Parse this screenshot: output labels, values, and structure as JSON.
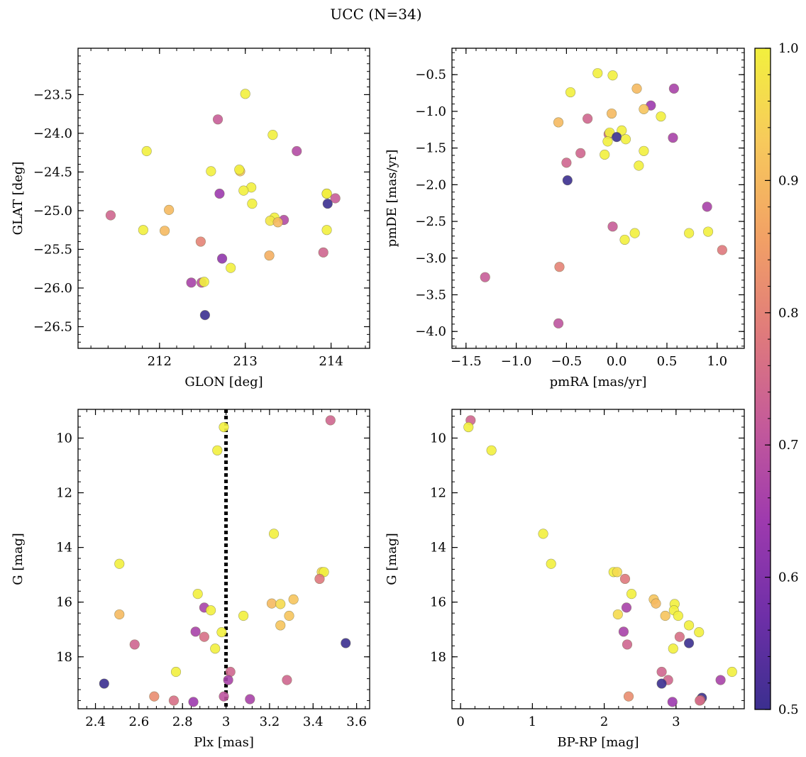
{
  "title": "UCC (N=34)",
  "colorbar": {
    "range": [
      0.5,
      1.0
    ],
    "ticks": [
      "0.5",
      "0.6",
      "0.7",
      "0.8",
      "0.9",
      "1.0"
    ],
    "colormap": "plasma",
    "stops": [
      "#3b2f8f",
      "#6f2fa8",
      "#9e3aae",
      "#c45a9a",
      "#e07b7b",
      "#f2a165",
      "#f7c95c",
      "#f2f03e"
    ]
  },
  "chart_data": [
    {
      "type": "scatter",
      "xlabel": "GLON [deg]",
      "ylabel": "GLAT [deg]",
      "xlim": [
        211.05,
        214.45
      ],
      "ylim": [
        -26.78,
        -22.9
      ],
      "y_inverted": false,
      "xticks": [
        212,
        213,
        214
      ],
      "yticks": [
        -23.5,
        -24.0,
        -24.5,
        -25.0,
        -25.5,
        -26.0,
        -26.5
      ],
      "ytick_labels": [
        "−23.5",
        "−24.0",
        "−24.5",
        "−25.0",
        "−25.5",
        "−26.0",
        "−26.5"
      ],
      "points": [
        {
          "x": 213.0,
          "y": -23.49,
          "c": 1.0
        },
        {
          "x": 212.68,
          "y": -23.82,
          "c": 0.72
        },
        {
          "x": 213.32,
          "y": -24.02,
          "c": 1.0
        },
        {
          "x": 211.85,
          "y": -24.23,
          "c": 1.0
        },
        {
          "x": 213.6,
          "y": -24.23,
          "c": 0.68
        },
        {
          "x": 212.6,
          "y": -24.49,
          "c": 1.0
        },
        {
          "x": 212.94,
          "y": -24.49,
          "c": 0.92
        },
        {
          "x": 212.93,
          "y": -24.47,
          "c": 1.0
        },
        {
          "x": 213.07,
          "y": -24.7,
          "c": 1.0
        },
        {
          "x": 212.98,
          "y": -24.74,
          "c": 1.0
        },
        {
          "x": 212.7,
          "y": -24.78,
          "c": 0.64
        },
        {
          "x": 213.95,
          "y": -24.78,
          "c": 0.96
        },
        {
          "x": 213.95,
          "y": -24.78,
          "c": 1.0
        },
        {
          "x": 214.05,
          "y": -24.84,
          "c": 0.72
        },
        {
          "x": 213.08,
          "y": -24.91,
          "c": 1.0
        },
        {
          "x": 213.96,
          "y": -24.91,
          "c": 0.5
        },
        {
          "x": 212.11,
          "y": -24.99,
          "c": 0.9
        },
        {
          "x": 211.43,
          "y": -25.06,
          "c": 0.74
        },
        {
          "x": 213.34,
          "y": -25.09,
          "c": 1.0
        },
        {
          "x": 213.45,
          "y": -25.12,
          "c": 0.68
        },
        {
          "x": 213.29,
          "y": -25.13,
          "c": 0.98
        },
        {
          "x": 213.38,
          "y": -25.15,
          "c": 0.9
        },
        {
          "x": 211.81,
          "y": -25.25,
          "c": 1.0
        },
        {
          "x": 212.06,
          "y": -25.26,
          "c": 0.9
        },
        {
          "x": 213.95,
          "y": -25.25,
          "c": 1.0
        },
        {
          "x": 212.48,
          "y": -25.4,
          "c": 0.8
        },
        {
          "x": 213.91,
          "y": -25.54,
          "c": 0.74
        },
        {
          "x": 213.28,
          "y": -25.58,
          "c": 0.88
        },
        {
          "x": 212.73,
          "y": -25.62,
          "c": 0.62
        },
        {
          "x": 212.83,
          "y": -25.74,
          "c": 1.0
        },
        {
          "x": 212.37,
          "y": -25.93,
          "c": 0.66
        },
        {
          "x": 212.49,
          "y": -25.93,
          "c": 0.7
        },
        {
          "x": 212.52,
          "y": -25.92,
          "c": 1.0
        },
        {
          "x": 212.53,
          "y": -26.35,
          "c": 0.5
        }
      ]
    },
    {
      "type": "scatter",
      "xlabel": "pmRA [mas/yr]",
      "ylabel": "pmDE [mas/yr]",
      "xlim": [
        -1.64,
        1.27
      ],
      "ylim": [
        -4.23,
        -0.14
      ],
      "y_inverted": false,
      "xticks": [
        -1.5,
        -1.0,
        -0.5,
        0.0,
        0.5,
        1.0
      ],
      "xtick_labels": [
        "−1.5",
        "−1.0",
        "−0.5",
        "0.0",
        "0.5",
        "1.0"
      ],
      "yticks": [
        -0.5,
        -1.0,
        -1.5,
        -2.0,
        -2.5,
        -3.0,
        -3.5,
        -4.0
      ],
      "ytick_labels": [
        "−0.5",
        "−1.0",
        "−1.5",
        "−2.0",
        "−2.5",
        "−3.0",
        "−3.5",
        "−4.0"
      ],
      "points": [
        {
          "x": -0.19,
          "y": -0.48,
          "c": 1.0
        },
        {
          "x": -0.04,
          "y": -0.51,
          "c": 1.0
        },
        {
          "x": 0.2,
          "y": -0.69,
          "c": 0.9
        },
        {
          "x": 0.57,
          "y": -0.69,
          "c": 0.66
        },
        {
          "x": -0.46,
          "y": -0.74,
          "c": 1.0
        },
        {
          "x": 0.34,
          "y": -0.92,
          "c": 0.64
        },
        {
          "x": 0.27,
          "y": -0.97,
          "c": 0.92
        },
        {
          "x": -0.05,
          "y": -1.03,
          "c": 0.9
        },
        {
          "x": 0.44,
          "y": -1.07,
          "c": 1.0
        },
        {
          "x": -0.29,
          "y": -1.1,
          "c": 0.74
        },
        {
          "x": -0.58,
          "y": -1.15,
          "c": 0.9
        },
        {
          "x": 0.05,
          "y": -1.26,
          "c": 1.0
        },
        {
          "x": -0.08,
          "y": -1.31,
          "c": 0.74
        },
        {
          "x": -0.07,
          "y": -1.29,
          "c": 1.0
        },
        {
          "x": 0.0,
          "y": -1.35,
          "c": 0.5
        },
        {
          "x": 0.09,
          "y": -1.38,
          "c": 1.0
        },
        {
          "x": 0.56,
          "y": -1.36,
          "c": 0.66
        },
        {
          "x": -0.09,
          "y": -1.41,
          "c": 1.0
        },
        {
          "x": 0.27,
          "y": -1.54,
          "c": 1.0
        },
        {
          "x": -0.36,
          "y": -1.57,
          "c": 0.74
        },
        {
          "x": -0.12,
          "y": -1.59,
          "c": 1.0
        },
        {
          "x": -0.5,
          "y": -1.7,
          "c": 0.74
        },
        {
          "x": 0.22,
          "y": -1.74,
          "c": 1.0
        },
        {
          "x": -0.49,
          "y": -1.94,
          "c": 0.5
        },
        {
          "x": 0.9,
          "y": -2.3,
          "c": 0.66
        },
        {
          "x": -0.04,
          "y": -2.57,
          "c": 0.72
        },
        {
          "x": 0.18,
          "y": -2.66,
          "c": 1.0
        },
        {
          "x": 0.72,
          "y": -2.66,
          "c": 1.0
        },
        {
          "x": 0.91,
          "y": -2.64,
          "c": 1.0
        },
        {
          "x": 1.05,
          "y": -2.89,
          "c": 0.78
        },
        {
          "x": 0.08,
          "y": -2.75,
          "c": 1.0
        },
        {
          "x": -0.57,
          "y": -3.12,
          "c": 0.8
        },
        {
          "x": -1.31,
          "y": -3.26,
          "c": 0.72
        },
        {
          "x": -0.58,
          "y": -3.89,
          "c": 0.7
        }
      ]
    },
    {
      "type": "scatter",
      "xlabel": "Plx [mas]",
      "ylabel": "G [mag]",
      "xlim": [
        2.32,
        3.66
      ],
      "ylim": [
        19.9,
        8.95
      ],
      "y_inverted": true,
      "xticks": [
        2.4,
        2.6,
        2.8,
        3.0,
        3.2,
        3.4,
        3.6
      ],
      "yticks": [
        10,
        12,
        14,
        16,
        18
      ],
      "reference_line": {
        "x": 3.0,
        "style": "dotted"
      },
      "points": [
        {
          "x": 2.99,
          "y": 9.6,
          "c": 1.0
        },
        {
          "x": 3.48,
          "y": 9.35,
          "c": 0.74
        },
        {
          "x": 2.96,
          "y": 10.45,
          "c": 1.0
        },
        {
          "x": 3.22,
          "y": 13.5,
          "c": 1.0
        },
        {
          "x": 2.51,
          "y": 14.6,
          "c": 1.0
        },
        {
          "x": 3.44,
          "y": 14.9,
          "c": 0.96
        },
        {
          "x": 3.45,
          "y": 14.9,
          "c": 1.0
        },
        {
          "x": 3.43,
          "y": 15.15,
          "c": 0.78
        },
        {
          "x": 2.87,
          "y": 15.7,
          "c": 1.0
        },
        {
          "x": 3.31,
          "y": 15.9,
          "c": 0.92
        },
        {
          "x": 3.21,
          "y": 16.05,
          "c": 0.9
        },
        {
          "x": 3.25,
          "y": 16.07,
          "c": 0.96
        },
        {
          "x": 2.9,
          "y": 16.2,
          "c": 0.66
        },
        {
          "x": 2.93,
          "y": 16.3,
          "c": 1.0
        },
        {
          "x": 2.51,
          "y": 16.45,
          "c": 0.9
        },
        {
          "x": 3.08,
          "y": 16.5,
          "c": 1.0
        },
        {
          "x": 3.29,
          "y": 16.5,
          "c": 0.92
        },
        {
          "x": 3.25,
          "y": 16.85,
          "c": 0.92
        },
        {
          "x": 2.86,
          "y": 17.08,
          "c": 0.66
        },
        {
          "x": 2.98,
          "y": 17.1,
          "c": 1.0
        },
        {
          "x": 2.9,
          "y": 17.27,
          "c": 0.76
        },
        {
          "x": 2.58,
          "y": 17.55,
          "c": 0.74
        },
        {
          "x": 3.55,
          "y": 17.5,
          "c": 0.5
        },
        {
          "x": 2.95,
          "y": 17.7,
          "c": 1.0
        },
        {
          "x": 2.77,
          "y": 18.55,
          "c": 1.0
        },
        {
          "x": 3.02,
          "y": 18.55,
          "c": 0.74
        },
        {
          "x": 3.28,
          "y": 18.85,
          "c": 0.74
        },
        {
          "x": 3.01,
          "y": 18.85,
          "c": 0.66
        },
        {
          "x": 2.44,
          "y": 18.98,
          "c": 0.5
        },
        {
          "x": 2.67,
          "y": 19.45,
          "c": 0.82
        },
        {
          "x": 2.76,
          "y": 19.6,
          "c": 0.76
        },
        {
          "x": 2.85,
          "y": 19.65,
          "c": 0.64
        },
        {
          "x": 3.11,
          "y": 19.55,
          "c": 0.66
        },
        {
          "x": 2.99,
          "y": 19.45,
          "c": 0.7
        }
      ]
    },
    {
      "type": "scatter",
      "xlabel": "BP-RP [mag]",
      "ylabel": "G [mag]",
      "xlim": [
        -0.12,
        3.95
      ],
      "ylim": [
        19.9,
        8.95
      ],
      "y_inverted": true,
      "xticks": [
        0,
        1,
        2,
        3
      ],
      "yticks": [
        10,
        12,
        14,
        16,
        18
      ],
      "points": [
        {
          "x": 0.14,
          "y": 9.35,
          "c": 0.74
        },
        {
          "x": 0.11,
          "y": 9.6,
          "c": 1.0
        },
        {
          "x": 0.43,
          "y": 10.45,
          "c": 1.0
        },
        {
          "x": 1.15,
          "y": 13.5,
          "c": 1.0
        },
        {
          "x": 1.26,
          "y": 14.6,
          "c": 1.0
        },
        {
          "x": 2.13,
          "y": 14.9,
          "c": 1.0
        },
        {
          "x": 2.18,
          "y": 14.9,
          "c": 0.96
        },
        {
          "x": 2.29,
          "y": 15.15,
          "c": 0.78
        },
        {
          "x": 2.38,
          "y": 15.7,
          "c": 1.0
        },
        {
          "x": 2.69,
          "y": 15.9,
          "c": 0.92
        },
        {
          "x": 2.72,
          "y": 16.05,
          "c": 0.9
        },
        {
          "x": 2.98,
          "y": 16.07,
          "c": 1.0
        },
        {
          "x": 2.31,
          "y": 16.2,
          "c": 0.66
        },
        {
          "x": 2.97,
          "y": 16.3,
          "c": 1.0
        },
        {
          "x": 2.19,
          "y": 16.45,
          "c": 0.96
        },
        {
          "x": 2.85,
          "y": 16.5,
          "c": 0.92
        },
        {
          "x": 3.03,
          "y": 16.5,
          "c": 1.0
        },
        {
          "x": 3.18,
          "y": 16.85,
          "c": 1.0
        },
        {
          "x": 2.27,
          "y": 17.08,
          "c": 0.66
        },
        {
          "x": 3.32,
          "y": 17.1,
          "c": 1.0
        },
        {
          "x": 3.05,
          "y": 17.27,
          "c": 0.76
        },
        {
          "x": 3.18,
          "y": 17.5,
          "c": 0.5
        },
        {
          "x": 2.32,
          "y": 17.55,
          "c": 0.74
        },
        {
          "x": 2.96,
          "y": 17.7,
          "c": 1.0
        },
        {
          "x": 2.8,
          "y": 18.55,
          "c": 0.74
        },
        {
          "x": 3.78,
          "y": 18.55,
          "c": 1.0
        },
        {
          "x": 2.89,
          "y": 18.85,
          "c": 0.74
        },
        {
          "x": 3.62,
          "y": 18.85,
          "c": 0.66
        },
        {
          "x": 2.8,
          "y": 18.98,
          "c": 0.5
        },
        {
          "x": 2.34,
          "y": 19.45,
          "c": 0.82
        },
        {
          "x": 3.36,
          "y": 19.5,
          "c": 0.5
        },
        {
          "x": 3.34,
          "y": 19.58,
          "c": 0.7
        },
        {
          "x": 3.33,
          "y": 19.6,
          "c": 0.76
        },
        {
          "x": 2.95,
          "y": 19.65,
          "c": 0.64
        }
      ]
    }
  ]
}
